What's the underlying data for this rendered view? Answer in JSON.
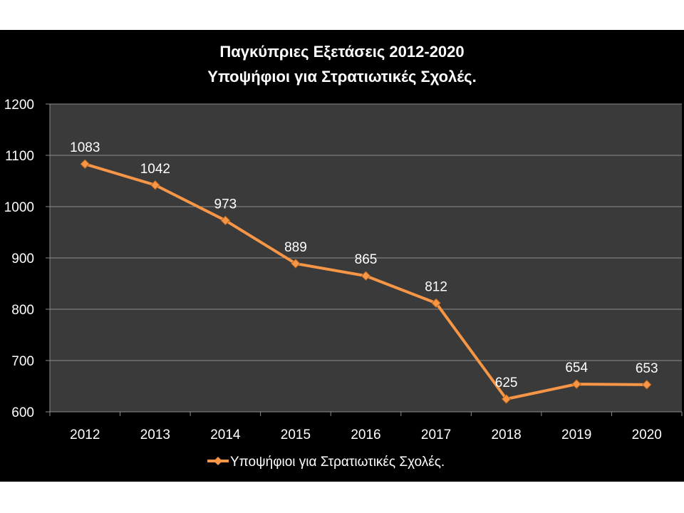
{
  "chart_data": {
    "type": "line",
    "title": [
      "Παγκύπριες Εξετάσεις 2012-2020",
      "Υποψήφιοι για Στρατιωτικές Σχολές."
    ],
    "categories": [
      "2012",
      "2013",
      "2014",
      "2015",
      "2016",
      "2017",
      "2018",
      "2019",
      "2020"
    ],
    "series": [
      {
        "name": "Υποψήφιοι για Στρατιωτικές Σχολές.",
        "values": [
          1083,
          1042,
          973,
          889,
          865,
          812,
          625,
          654,
          653
        ],
        "color": "#F79646"
      }
    ],
    "ylim": [
      600,
      1200
    ],
    "yticks": [
      600,
      700,
      800,
      900,
      1000,
      1100,
      1200
    ],
    "xlabel": "",
    "ylabel": "",
    "grid": true,
    "legend": "bottom",
    "background": "#000000",
    "plot_background": "#3A3A3A",
    "gridline_color": "#8C8C8C"
  }
}
